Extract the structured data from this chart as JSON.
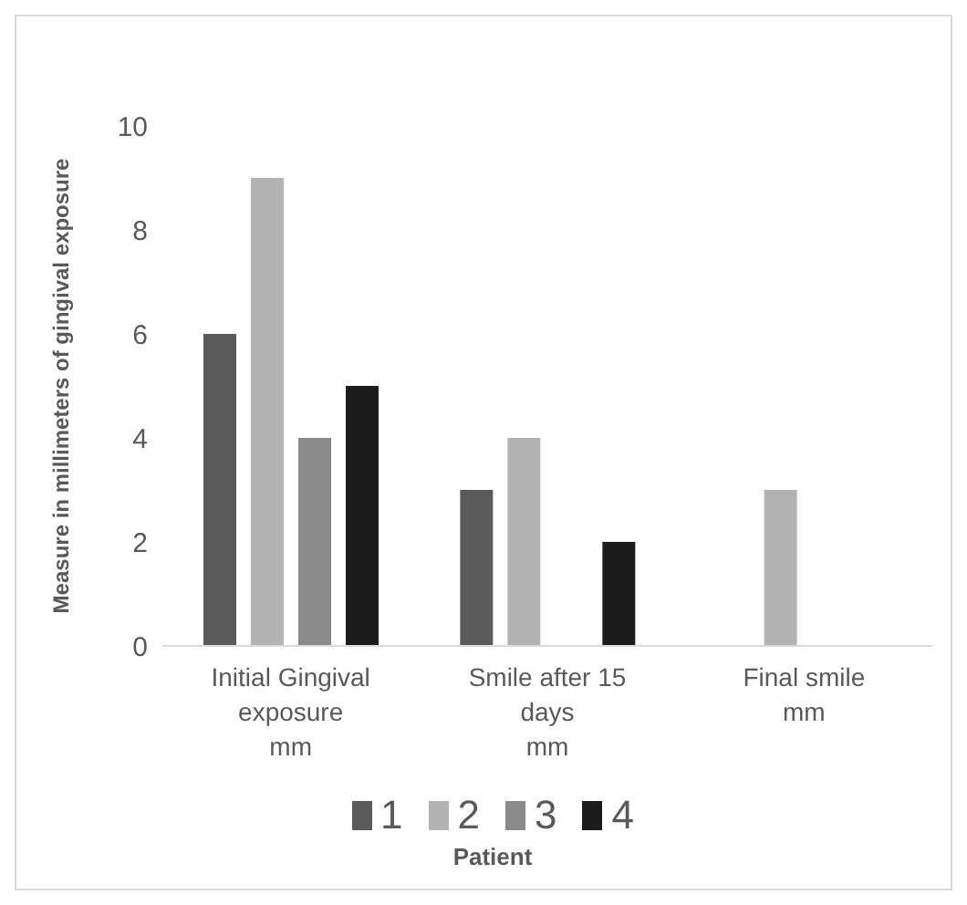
{
  "chart_data": {
    "type": "bar",
    "ylabel": "Measure in millimeters of gingival exposure",
    "legend_title": "Patient",
    "categories": [
      "Initial Gingival\nexposure\nmm",
      "Smile after 15\ndays\nmm",
      "Final smile\nmm"
    ],
    "series": [
      {
        "name": "1",
        "color": "#5a5a5a",
        "values": [
          6,
          3,
          0
        ]
      },
      {
        "name": "2",
        "color": "#b3b3b3",
        "values": [
          9,
          4,
          3
        ]
      },
      {
        "name": "3",
        "color": "#8a8a8a",
        "values": [
          4,
          0,
          0
        ]
      },
      {
        "name": "4",
        "color": "#1c1c1c",
        "values": [
          5,
          2,
          0
        ]
      }
    ],
    "ylim": [
      0,
      10
    ],
    "yticks": [
      0,
      2,
      4,
      6,
      8,
      10
    ],
    "grid": false,
    "legend": "bottom"
  }
}
